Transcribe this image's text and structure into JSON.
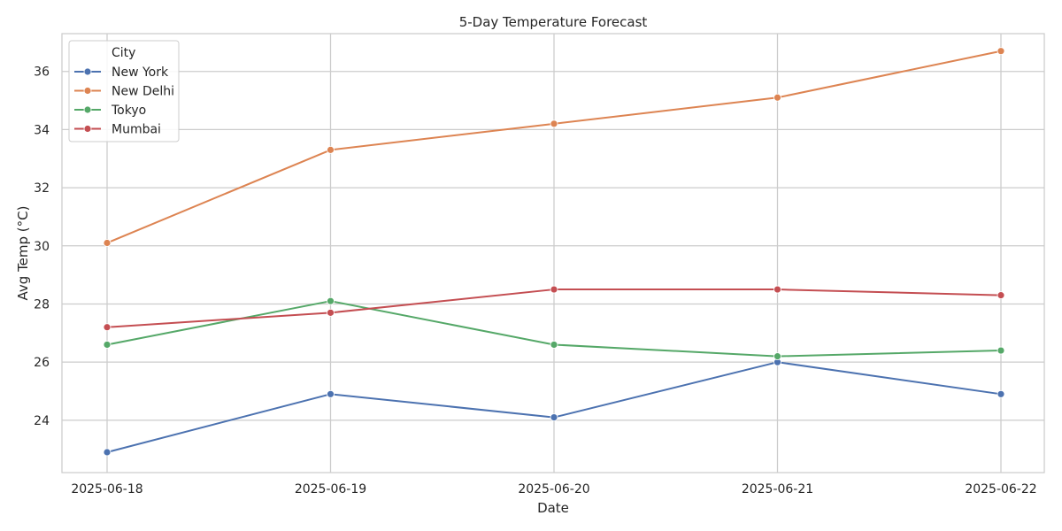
{
  "chart_data": {
    "type": "line",
    "title": "5-Day Temperature Forecast",
    "xlabel": "Date",
    "ylabel": "Avg Temp (°C)",
    "categories": [
      "2025-06-18",
      "2025-06-19",
      "2025-06-20",
      "2025-06-21",
      "2025-06-22"
    ],
    "ylim": [
      22.2,
      37.3
    ],
    "yticks": [
      24,
      26,
      28,
      30,
      32,
      34,
      36
    ],
    "grid": true,
    "legend": {
      "title": "City",
      "placement": "top-left"
    },
    "series": [
      {
        "name": "New York",
        "color": "#4c72b0",
        "values": [
          22.9,
          24.9,
          24.1,
          26.0,
          24.9
        ]
      },
      {
        "name": "New Delhi",
        "color": "#dd8452",
        "values": [
          30.1,
          33.3,
          34.2,
          35.1,
          36.7
        ]
      },
      {
        "name": "Tokyo",
        "color": "#55a868",
        "values": [
          26.6,
          28.1,
          26.6,
          26.2,
          26.4
        ]
      },
      {
        "name": "Mumbai",
        "color": "#c44e52",
        "values": [
          27.2,
          27.7,
          28.5,
          28.5,
          28.3
        ]
      }
    ]
  }
}
